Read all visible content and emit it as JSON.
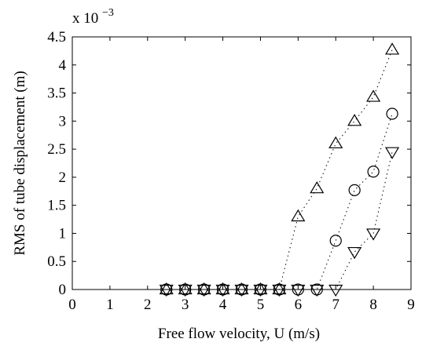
{
  "chart_data": {
    "type": "scatter",
    "xlabel": "Free flow velocity, U (m/s)",
    "ylabel": "RMS of tube displacement (m)",
    "y_multiplier_label": "x 10",
    "y_multiplier_exponent": "−3",
    "xlim": [
      0,
      9
    ],
    "ylim": [
      0,
      4.5
    ],
    "xticks": [
      "0",
      "1",
      "2",
      "3",
      "4",
      "5",
      "6",
      "7",
      "8",
      "9"
    ],
    "yticks": [
      "0",
      "0.5",
      "1",
      "1.5",
      "2",
      "2.5",
      "3",
      "3.5",
      "4",
      "4.5"
    ],
    "grid": false,
    "legend": "none",
    "series": [
      {
        "marker": "triangle-up",
        "line_style": "dotted",
        "x": [
          2.5,
          3.0,
          3.5,
          4.0,
          4.5,
          5.0,
          5.5,
          6.0,
          6.5,
          7.0,
          7.5,
          8.0,
          8.5
        ],
        "y": [
          0,
          0,
          0,
          0,
          0,
          0,
          0,
          1.3,
          1.8,
          2.6,
          3.0,
          3.43,
          4.27
        ]
      },
      {
        "marker": "circle",
        "line_style": "dotted",
        "x": [
          2.5,
          3.0,
          3.5,
          4.0,
          4.5,
          5.0,
          5.5,
          6.0,
          6.5,
          7.0,
          7.5,
          8.0,
          8.5
        ],
        "y": [
          0,
          0,
          0,
          0,
          0,
          0,
          0,
          0,
          0,
          0.87,
          1.77,
          2.1,
          3.13
        ]
      },
      {
        "marker": "triangle-down",
        "line_style": "dotted",
        "x": [
          2.5,
          3.0,
          3.5,
          4.0,
          4.5,
          5.0,
          5.5,
          6.0,
          6.5,
          7.0,
          7.5,
          8.0,
          8.5
        ],
        "y": [
          0,
          0,
          0,
          0,
          0,
          0,
          0,
          0,
          0,
          0,
          0.67,
          1.0,
          2.45
        ]
      }
    ]
  }
}
